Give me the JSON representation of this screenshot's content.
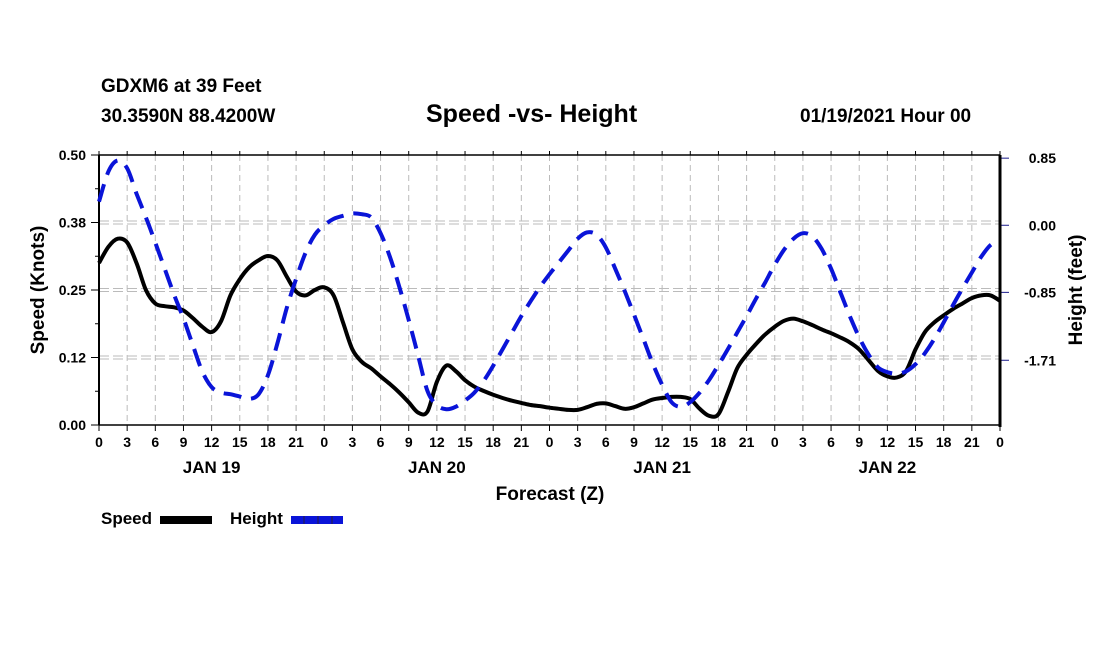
{
  "header": {
    "station": "GDXM6 at 39 Feet",
    "coords": "30.3590N 88.4200W",
    "title": "Speed -vs- Height",
    "date": "01/19/2021 Hour 00"
  },
  "legend": {
    "speed_label": "Speed",
    "height_label": "Height"
  },
  "chart_data": {
    "type": "line",
    "title": "Speed -vs- Height",
    "xlabel": "Forecast (Z)",
    "ylabel": "Speed (Knots)",
    "y2label": "Height (feet)",
    "x_unit": "forecast hour",
    "xlim": [
      0,
      96
    ],
    "ylim": [
      0,
      0.5
    ],
    "y2lim": [
      -2.53,
      0.89
    ],
    "y_ticks": [
      "0.00",
      "0.12",
      "0.25",
      "0.38",
      "0.50"
    ],
    "y_tick_values": [
      0,
      0.125,
      0.25,
      0.375,
      0.5
    ],
    "y2_ticks": [
      "0.85",
      "0.00",
      "-0.85",
      "-1.71"
    ],
    "y2_tick_values": [
      0.85,
      0.0,
      -0.85,
      -1.71
    ],
    "x_tick_labels": [
      "0",
      "3",
      "6",
      "9",
      "12",
      "15",
      "18",
      "21",
      "0",
      "3",
      "6",
      "9",
      "12",
      "15",
      "18",
      "21",
      "0",
      "3",
      "6",
      "9",
      "12",
      "15",
      "18",
      "21",
      "0",
      "3",
      "6",
      "9",
      "12",
      "15",
      "18",
      "21",
      "0"
    ],
    "day_labels": [
      {
        "label": "JAN 19",
        "hour": 12
      },
      {
        "label": "JAN 20",
        "hour": 36
      },
      {
        "label": "JAN 21",
        "hour": 60
      },
      {
        "label": "JAN 22",
        "hour": 84
      }
    ],
    "grid": true,
    "legend_position": "bottom-left",
    "colors": {
      "speed": "#000000",
      "height": "#0a14d8",
      "grid": "#bbbbbb"
    },
    "series": [
      {
        "name": "Speed",
        "axis": "left",
        "style": "solid",
        "x": [
          0,
          1,
          2,
          3,
          4,
          5,
          6,
          7,
          8,
          9,
          10,
          11,
          12,
          13,
          14,
          15,
          16,
          17,
          18,
          19,
          20,
          21,
          22,
          23,
          24,
          25,
          26,
          27,
          28,
          29,
          30,
          31,
          32,
          33,
          34,
          35,
          36,
          37,
          38,
          39,
          40,
          41,
          42,
          43,
          44,
          45,
          46,
          47,
          48,
          49,
          50,
          51,
          52,
          53,
          54,
          55,
          56,
          57,
          58,
          59,
          60,
          61,
          62,
          63,
          64,
          65,
          66,
          67,
          68,
          69,
          70,
          71,
          72,
          73,
          74,
          75,
          76,
          77,
          78,
          79,
          80,
          81,
          82,
          83,
          84,
          85,
          86,
          87,
          88,
          89,
          90,
          91,
          92,
          93,
          94,
          95,
          96
        ],
        "values": [
          0.3,
          0.33,
          0.345,
          0.338,
          0.3,
          0.25,
          0.225,
          0.22,
          0.218,
          0.212,
          0.198,
          0.182,
          0.172,
          0.192,
          0.24,
          0.27,
          0.292,
          0.305,
          0.313,
          0.305,
          0.275,
          0.247,
          0.24,
          0.25,
          0.255,
          0.24,
          0.19,
          0.14,
          0.117,
          0.105,
          0.09,
          0.076,
          0.06,
          0.042,
          0.023,
          0.025,
          0.08,
          0.11,
          0.1,
          0.083,
          0.071,
          0.063,
          0.056,
          0.05,
          0.045,
          0.041,
          0.037,
          0.035,
          0.032,
          0.03,
          0.028,
          0.028,
          0.033,
          0.039,
          0.04,
          0.035,
          0.03,
          0.033,
          0.04,
          0.047,
          0.05,
          0.052,
          0.052,
          0.048,
          0.03,
          0.017,
          0.02,
          0.06,
          0.105,
          0.13,
          0.15,
          0.168,
          0.182,
          0.193,
          0.197,
          0.192,
          0.185,
          0.177,
          0.17,
          0.162,
          0.153,
          0.14,
          0.12,
          0.1,
          0.09,
          0.088,
          0.1,
          0.14,
          0.172,
          0.19,
          0.203,
          0.215,
          0.225,
          0.235,
          0.24,
          0.24,
          0.23
        ]
      },
      {
        "name": "Height",
        "axis": "right",
        "style": "dashed",
        "x": [
          0,
          1,
          2,
          3,
          4,
          5,
          6,
          7,
          8,
          9,
          10,
          11,
          12,
          13,
          14,
          15,
          16,
          17,
          18,
          19,
          20,
          21,
          22,
          23,
          24,
          25,
          26,
          27,
          28,
          29,
          30,
          31,
          32,
          33,
          34,
          35,
          36,
          37,
          38,
          39,
          40,
          41,
          42,
          43,
          44,
          45,
          46,
          47,
          48,
          49,
          50,
          51,
          52,
          53,
          54,
          55,
          56,
          57,
          58,
          59,
          60,
          61,
          62,
          63,
          64,
          65,
          66,
          67,
          68,
          69,
          70,
          71,
          72,
          73,
          74,
          75,
          76,
          77,
          78,
          79,
          80,
          81,
          82,
          83,
          84,
          85,
          86,
          87,
          88,
          89,
          90,
          91,
          92,
          93,
          94,
          95,
          96
        ],
        "values": [
          0.3,
          0.68,
          0.82,
          0.72,
          0.4,
          0.1,
          -0.22,
          -0.55,
          -0.88,
          -1.18,
          -1.52,
          -1.85,
          -2.05,
          -2.12,
          -2.14,
          -2.17,
          -2.2,
          -2.14,
          -1.9,
          -1.5,
          -1.05,
          -0.68,
          -0.35,
          -0.12,
          0.0,
          0.08,
          0.12,
          0.15,
          0.14,
          0.1,
          -0.1,
          -0.4,
          -0.78,
          -1.2,
          -1.65,
          -2.1,
          -2.28,
          -2.33,
          -2.3,
          -2.22,
          -2.12,
          -1.97,
          -1.78,
          -1.57,
          -1.36,
          -1.15,
          -0.96,
          -0.78,
          -0.62,
          -0.47,
          -0.32,
          -0.17,
          -0.09,
          -0.12,
          -0.28,
          -0.55,
          -0.83,
          -1.13,
          -1.44,
          -1.75,
          -2.02,
          -2.24,
          -2.3,
          -2.24,
          -2.12,
          -1.96,
          -1.77,
          -1.57,
          -1.36,
          -1.15,
          -0.93,
          -0.72,
          -0.5,
          -0.31,
          -0.17,
          -0.1,
          -0.14,
          -0.3,
          -0.55,
          -0.85,
          -1.15,
          -1.42,
          -1.64,
          -1.8,
          -1.86,
          -1.88,
          -1.85,
          -1.76,
          -1.62,
          -1.44,
          -1.23,
          -1.01,
          -0.8,
          -0.6,
          -0.4,
          -0.25,
          -0.2
        ]
      }
    ]
  }
}
